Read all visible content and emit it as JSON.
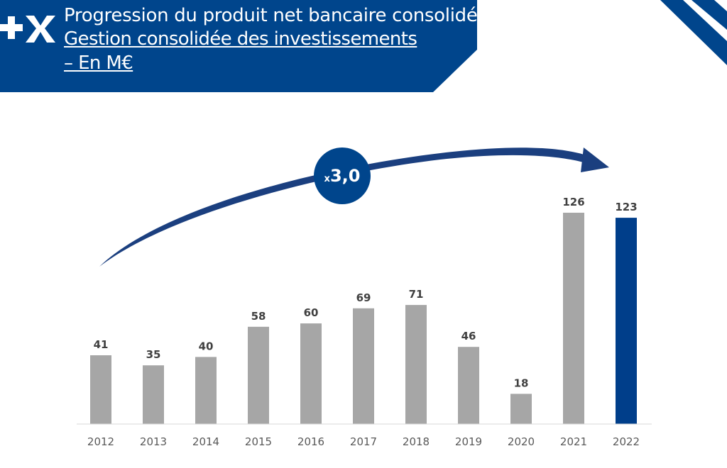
{
  "header": {
    "title": "Progression du produit net bancaire consolidée",
    "subtitle_line1": "Gestion consolidée des investissements",
    "subtitle_line2": "– En M€",
    "logo_text": "+X"
  },
  "colors": {
    "brand_blue": "#00458c",
    "bar_grey": "#a6a6a6",
    "highlight_bar": "#003e8a",
    "arrow_blue": "#1b3f7f"
  },
  "annotation": {
    "prefix": "x",
    "value": "3,0"
  },
  "chart_data": {
    "type": "bar",
    "categories": [
      "2012",
      "2013",
      "2014",
      "2015",
      "2016",
      "2017",
      "2018",
      "2019",
      "2020",
      "2021",
      "2022"
    ],
    "values": [
      41,
      35,
      40,
      58,
      60,
      69,
      71,
      46,
      18,
      126,
      123
    ],
    "data_labels": [
      "41",
      "35",
      "40",
      "58",
      "60",
      "69",
      "71",
      "46",
      "18",
      "126",
      "123"
    ],
    "highlighted_category": "2022",
    "ylim": [
      0,
      126
    ],
    "grid": false,
    "legend": "none"
  }
}
